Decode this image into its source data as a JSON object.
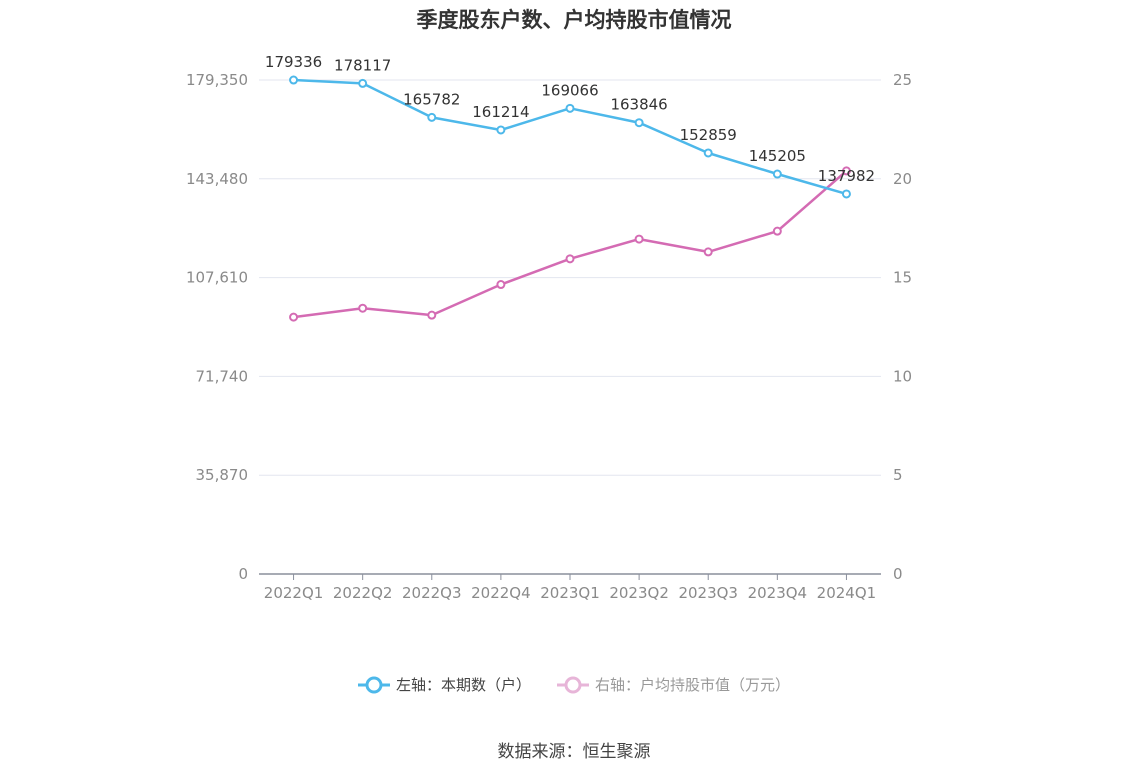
{
  "chart_data": {
    "type": "line",
    "title": "季度股东户数、户均持股市值情况",
    "categories": [
      "2022Q1",
      "2022Q2",
      "2022Q3",
      "2022Q4",
      "2023Q1",
      "2023Q2",
      "2023Q3",
      "2023Q4",
      "2024Q1"
    ],
    "left_axis": {
      "ticks": [
        "0",
        "35,870",
        "71,740",
        "107,610",
        "143,480",
        "179,350"
      ],
      "range": [
        0,
        179350
      ]
    },
    "right_axis": {
      "ticks": [
        "0",
        "5",
        "10",
        "15",
        "20",
        "25"
      ],
      "range": [
        0,
        25
      ]
    },
    "series": [
      {
        "name": "左轴：本期数（户）",
        "axis": "left",
        "color": "#4db8ea",
        "values": [
          179336,
          178117,
          165782,
          161214,
          169066,
          163846,
          152859,
          145205,
          137982
        ],
        "labels": [
          "179336",
          "178117",
          "165782",
          "161214",
          "169066",
          "163846",
          "152859",
          "145205",
          "137982"
        ]
      },
      {
        "name": "右轴：户均持股市值（万元）",
        "axis": "right",
        "color": "#d46bb3",
        "values": [
          13.0,
          13.45,
          13.1,
          14.65,
          15.95,
          16.95,
          16.3,
          17.35,
          20.4
        ]
      }
    ],
    "grid": true,
    "legend": "bottom-center"
  },
  "source": "数据来源：恒生聚源"
}
